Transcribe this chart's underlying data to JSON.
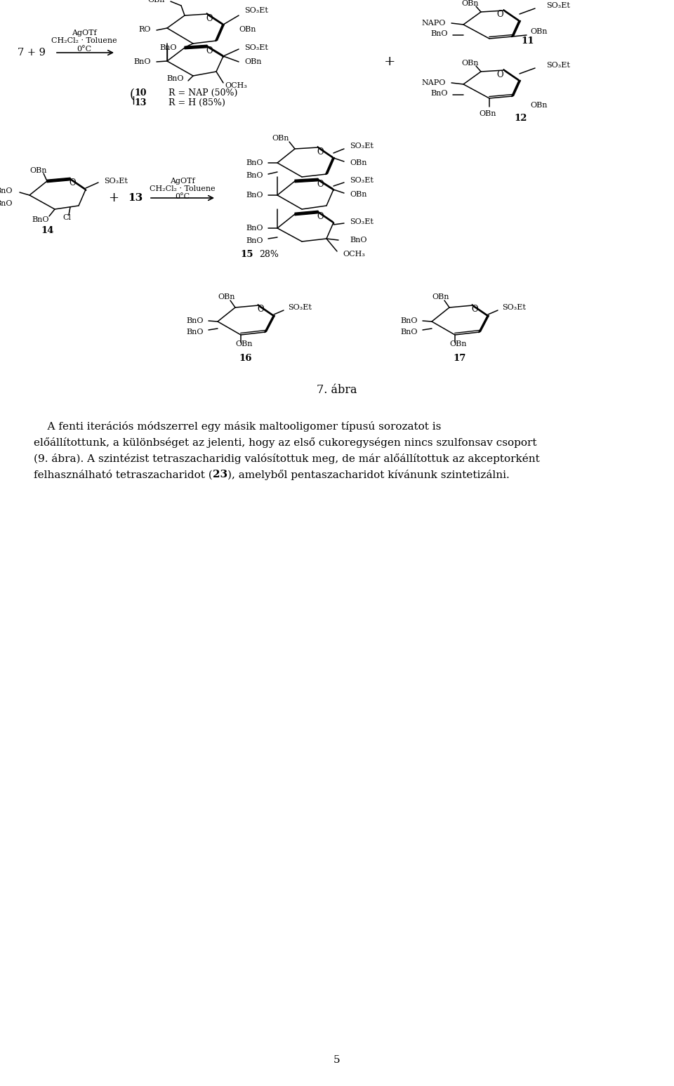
{
  "page_title": "7. ábra",
  "para_line1": "    A fenti iterációs módszerrel egy másik maltooligomer típusú sorozatot is",
  "para_line2": "előállítottunk, a különbséget az jelenti, hogy az első cukoregységen nincs szulfonsav csoport",
  "para_line3": "(9. ábra). A szintézist tetraszacharidig valósítottuk meg, de már alőállítottuk az akceptorként",
  "para_line4_pre": "felhasználható tetraszacharidot (",
  "para_line4_bold": "23",
  "para_line4_post": "), amelyből pentaszacharidot kívánunk szintetizálni.",
  "page_number": "5",
  "bg_color": "#ffffff",
  "fig_width": 9.6,
  "fig_height": 15.47
}
